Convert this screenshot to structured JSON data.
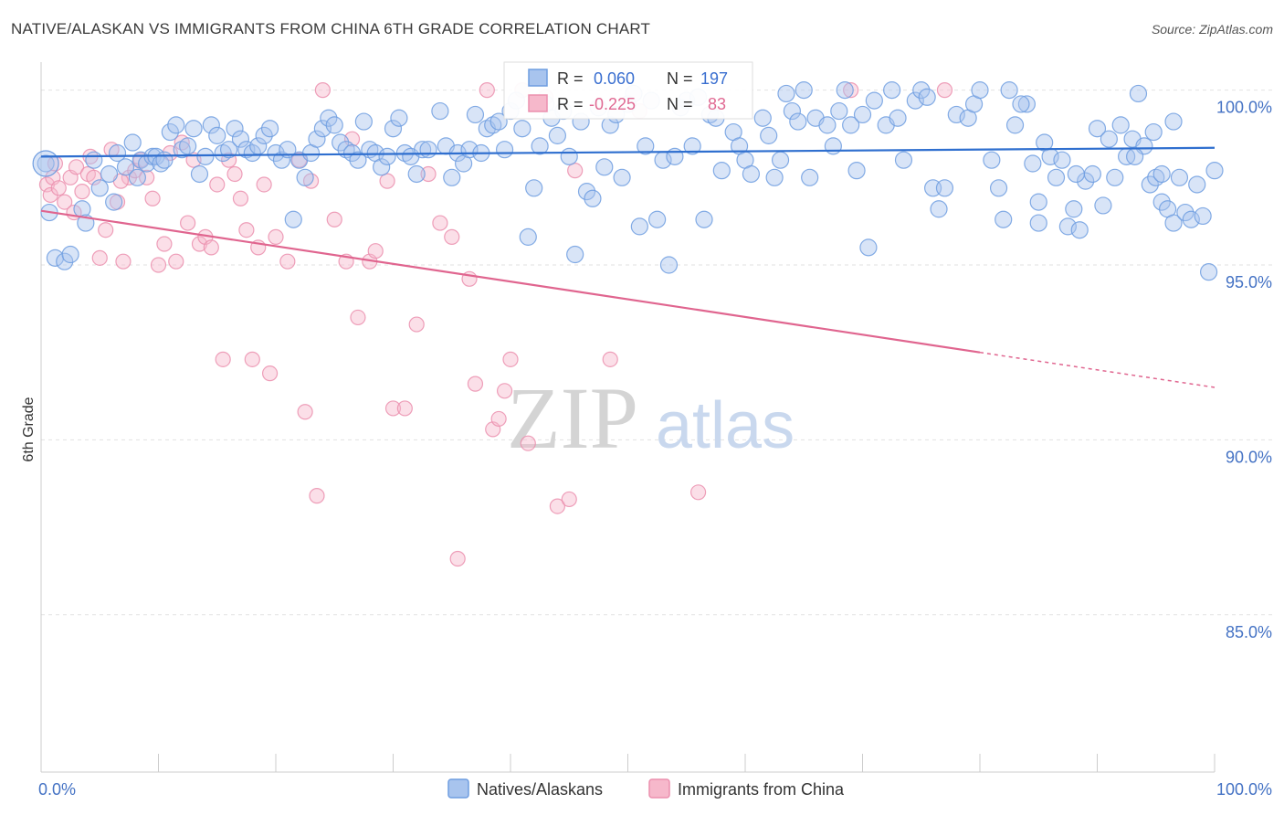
{
  "header": {
    "title": "NATIVE/ALASKAN VS IMMIGRANTS FROM CHINA 6TH GRADE CORRELATION CHART",
    "source": "Source: ZipAtlas.com"
  },
  "watermark": {
    "zip": "ZIP",
    "atlas": "atlas"
  },
  "stats": {
    "r_label": "R =",
    "n_label": "N =",
    "series1": {
      "r": "0.060",
      "n": "197"
    },
    "series2": {
      "r": "-0.225",
      "n": "83"
    }
  },
  "colors": {
    "blue_fill": "#a8c4ee",
    "blue_stroke": "#6f9de0",
    "blue_line": "#2f6fcf",
    "pink_fill": "#f6b8cb",
    "pink_stroke": "#eb8fae",
    "pink_line": "#e0658f"
  },
  "chart_data": {
    "type": "scatter",
    "title": "NATIVE/ALASKAN VS IMMIGRANTS FROM CHINA 6TH GRADE CORRELATION CHART",
    "xlabel": "",
    "ylabel": "6th Grade",
    "xlim": [
      0,
      100
    ],
    "ylim": [
      80.5,
      100.8
    ],
    "x_tick_labels": [
      "0.0%",
      "100.0%"
    ],
    "y_ticks": [
      {
        "value": 100,
        "label": "100.0%"
      },
      {
        "value": 95,
        "label": "95.0%"
      },
      {
        "value": 90,
        "label": "90.0%"
      },
      {
        "value": 85,
        "label": "85.0%"
      }
    ],
    "grid": true,
    "legend_position": "bottom",
    "series": [
      {
        "name": "Natives/Alaskans",
        "color": "#a8c4ee",
        "trend": {
          "x": [
            0,
            100
          ],
          "y": [
            98.1,
            98.35
          ]
        },
        "points": [
          [
            0.4,
            97.9
          ],
          [
            0.7,
            96.5
          ],
          [
            1.2,
            95.2
          ],
          [
            2.0,
            95.1
          ],
          [
            2.5,
            95.3
          ],
          [
            3.5,
            96.6
          ],
          [
            3.8,
            96.2
          ],
          [
            4.5,
            98.0
          ],
          [
            5.0,
            97.2
          ],
          [
            5.8,
            97.6
          ],
          [
            6.2,
            96.8
          ],
          [
            6.5,
            98.2
          ],
          [
            7.2,
            97.8
          ],
          [
            7.8,
            98.5
          ],
          [
            8.2,
            97.5
          ],
          [
            8.5,
            98.0
          ],
          [
            9.0,
            97.9
          ],
          [
            9.5,
            98.1
          ],
          [
            9.8,
            98.1
          ],
          [
            10.2,
            97.9
          ],
          [
            10.5,
            98.0
          ],
          [
            11.0,
            98.8
          ],
          [
            11.5,
            99.0
          ],
          [
            12.0,
            98.3
          ],
          [
            12.5,
            98.4
          ],
          [
            13.0,
            98.9
          ],
          [
            13.5,
            97.6
          ],
          [
            14.0,
            98.1
          ],
          [
            14.5,
            99.0
          ],
          [
            15.0,
            98.7
          ],
          [
            15.5,
            98.2
          ],
          [
            16.0,
            98.3
          ],
          [
            16.5,
            98.9
          ],
          [
            17.0,
            98.6
          ],
          [
            17.5,
            98.3
          ],
          [
            18.0,
            98.2
          ],
          [
            18.5,
            98.4
          ],
          [
            19.0,
            98.7
          ],
          [
            19.5,
            98.9
          ],
          [
            20.0,
            98.2
          ],
          [
            20.5,
            98.0
          ],
          [
            21.0,
            98.3
          ],
          [
            21.5,
            96.3
          ],
          [
            22.0,
            98.0
          ],
          [
            22.5,
            97.5
          ],
          [
            23.0,
            98.2
          ],
          [
            23.5,
            98.6
          ],
          [
            24.0,
            98.9
          ],
          [
            24.5,
            99.2
          ],
          [
            25.0,
            99.0
          ],
          [
            25.5,
            98.5
          ],
          [
            26.0,
            98.3
          ],
          [
            26.5,
            98.2
          ],
          [
            27.0,
            98.0
          ],
          [
            27.5,
            99.1
          ],
          [
            28.0,
            98.3
          ],
          [
            28.5,
            98.2
          ],
          [
            29.0,
            97.8
          ],
          [
            29.5,
            98.1
          ],
          [
            30.0,
            98.9
          ],
          [
            30.5,
            99.2
          ],
          [
            31.0,
            98.2
          ],
          [
            31.5,
            98.1
          ],
          [
            32.0,
            97.6
          ],
          [
            32.5,
            98.3
          ],
          [
            33.0,
            98.3
          ],
          [
            34.0,
            99.4
          ],
          [
            34.5,
            98.4
          ],
          [
            35.0,
            97.5
          ],
          [
            35.5,
            98.2
          ],
          [
            36.0,
            97.9
          ],
          [
            36.5,
            98.3
          ],
          [
            37.0,
            99.3
          ],
          [
            37.5,
            98.2
          ],
          [
            38.0,
            98.9
          ],
          [
            38.5,
            99.0
          ],
          [
            39.0,
            99.1
          ],
          [
            39.5,
            98.3
          ],
          [
            40.0,
            99.4
          ],
          [
            40.5,
            99.7
          ],
          [
            41.0,
            98.9
          ],
          [
            41.5,
            95.8
          ],
          [
            42.0,
            97.2
          ],
          [
            42.5,
            98.4
          ],
          [
            43.0,
            99.6
          ],
          [
            43.5,
            99.2
          ],
          [
            44.0,
            98.7
          ],
          [
            44.5,
            99.4
          ],
          [
            45.0,
            98.1
          ],
          [
            45.5,
            95.3
          ],
          [
            46.0,
            99.1
          ],
          [
            46.5,
            97.1
          ],
          [
            47.0,
            96.9
          ],
          [
            47.5,
            99.5
          ],
          [
            48.0,
            97.8
          ],
          [
            48.5,
            99.0
          ],
          [
            49.0,
            99.3
          ],
          [
            49.5,
            97.5
          ],
          [
            50.0,
            99.6
          ],
          [
            50.5,
            99.9
          ],
          [
            51.0,
            96.1
          ],
          [
            51.5,
            98.4
          ],
          [
            52.0,
            99.7
          ],
          [
            52.5,
            96.3
          ],
          [
            53.0,
            98.0
          ],
          [
            53.5,
            95.0
          ],
          [
            54.0,
            98.1
          ],
          [
            54.5,
            99.5
          ],
          [
            55.0,
            99.7
          ],
          [
            55.5,
            98.4
          ],
          [
            56.0,
            99.8
          ],
          [
            56.5,
            96.3
          ],
          [
            57.0,
            99.3
          ],
          [
            57.5,
            99.2
          ],
          [
            58.0,
            97.7
          ],
          [
            59.0,
            98.8
          ],
          [
            59.5,
            98.4
          ],
          [
            60.0,
            98.0
          ],
          [
            60.5,
            97.6
          ],
          [
            61.5,
            99.2
          ],
          [
            62.0,
            98.7
          ],
          [
            62.5,
            97.5
          ],
          [
            63.0,
            98.0
          ],
          [
            63.5,
            99.9
          ],
          [
            64.0,
            99.4
          ],
          [
            64.5,
            99.1
          ],
          [
            65.0,
            100.0
          ],
          [
            65.5,
            97.5
          ],
          [
            66.0,
            99.2
          ],
          [
            67.0,
            99.0
          ],
          [
            67.5,
            98.4
          ],
          [
            68.0,
            99.4
          ],
          [
            68.5,
            100.0
          ],
          [
            69.0,
            99.0
          ],
          [
            69.5,
            97.7
          ],
          [
            70.0,
            99.3
          ],
          [
            70.5,
            95.5
          ],
          [
            71.0,
            99.7
          ],
          [
            72.0,
            99.0
          ],
          [
            72.5,
            100.0
          ],
          [
            73.0,
            99.2
          ],
          [
            73.5,
            98.0
          ],
          [
            74.5,
            99.7
          ],
          [
            75.0,
            100.0
          ],
          [
            75.5,
            99.8
          ],
          [
            76.0,
            97.2
          ],
          [
            76.5,
            96.6
          ],
          [
            77.0,
            97.2
          ],
          [
            78.0,
            99.3
          ],
          [
            79.0,
            99.2
          ],
          [
            79.5,
            99.6
          ],
          [
            80.0,
            100.0
          ],
          [
            81.0,
            98.0
          ],
          [
            82.0,
            96.3
          ],
          [
            82.5,
            100.0
          ],
          [
            83.0,
            99.0
          ],
          [
            84.0,
            99.6
          ],
          [
            84.5,
            97.9
          ],
          [
            85.0,
            96.8
          ],
          [
            85.5,
            98.5
          ],
          [
            86.0,
            98.1
          ],
          [
            86.5,
            97.5
          ],
          [
            87.0,
            98.0
          ],
          [
            87.5,
            96.1
          ],
          [
            88.0,
            96.6
          ],
          [
            88.5,
            96.0
          ],
          [
            89.0,
            97.4
          ],
          [
            90.0,
            98.9
          ],
          [
            90.5,
            96.7
          ],
          [
            91.0,
            98.6
          ],
          [
            91.5,
            97.5
          ],
          [
            92.0,
            99.0
          ],
          [
            92.5,
            98.1
          ],
          [
            93.0,
            98.6
          ],
          [
            93.5,
            99.9
          ],
          [
            94.0,
            98.4
          ],
          [
            94.5,
            97.3
          ],
          [
            95.0,
            97.5
          ],
          [
            95.5,
            96.8
          ],
          [
            96.0,
            96.6
          ],
          [
            96.5,
            96.2
          ],
          [
            97.0,
            97.5
          ],
          [
            97.5,
            96.5
          ],
          [
            98.0,
            96.3
          ],
          [
            98.5,
            97.3
          ],
          [
            99.0,
            96.4
          ],
          [
            99.5,
            94.8
          ],
          [
            100.0,
            97.7
          ],
          [
            95.5,
            97.6
          ],
          [
            94.8,
            98.8
          ],
          [
            96.5,
            99.1
          ],
          [
            93.2,
            98.1
          ],
          [
            89.6,
            97.6
          ],
          [
            88.2,
            97.6
          ],
          [
            85.0,
            96.2
          ],
          [
            83.5,
            99.6
          ],
          [
            81.6,
            97.2
          ]
        ]
      },
      {
        "name": "Immigrants from China",
        "color": "#f6b8cb",
        "trend": {
          "x": [
            0,
            80
          ],
          "y": [
            96.55,
            92.5
          ]
        },
        "trend_extended": {
          "x": [
            80,
            100
          ],
          "y": [
            92.5,
            91.5
          ]
        },
        "points": [
          [
            0.5,
            97.3
          ],
          [
            0.8,
            97.0
          ],
          [
            1.0,
            97.5
          ],
          [
            1.5,
            97.2
          ],
          [
            2.0,
            96.8
          ],
          [
            2.5,
            97.5
          ],
          [
            3.0,
            97.8
          ],
          [
            3.5,
            97.1
          ],
          [
            4.0,
            97.6
          ],
          [
            4.5,
            97.5
          ],
          [
            5.0,
            95.2
          ],
          [
            5.5,
            96.0
          ],
          [
            6.0,
            98.3
          ],
          [
            6.5,
            96.8
          ],
          [
            7.0,
            95.1
          ],
          [
            7.5,
            97.5
          ],
          [
            8.0,
            97.7
          ],
          [
            8.5,
            98.0
          ],
          [
            9.0,
            97.5
          ],
          [
            9.5,
            96.9
          ],
          [
            10.0,
            95.0
          ],
          [
            10.5,
            95.6
          ],
          [
            11.0,
            98.2
          ],
          [
            11.5,
            95.1
          ],
          [
            12.0,
            98.5
          ],
          [
            12.5,
            96.2
          ],
          [
            13.0,
            98.0
          ],
          [
            13.5,
            95.6
          ],
          [
            14.0,
            95.8
          ],
          [
            14.5,
            95.5
          ],
          [
            15.0,
            97.3
          ],
          [
            15.5,
            92.3
          ],
          [
            16.0,
            98.0
          ],
          [
            16.5,
            97.6
          ],
          [
            17.0,
            96.9
          ],
          [
            17.5,
            96.0
          ],
          [
            18.0,
            92.3
          ],
          [
            18.5,
            95.5
          ],
          [
            19.0,
            97.3
          ],
          [
            19.5,
            91.9
          ],
          [
            20.0,
            95.8
          ],
          [
            21.0,
            95.1
          ],
          [
            22.0,
            98.0
          ],
          [
            22.5,
            90.8
          ],
          [
            23.0,
            97.4
          ],
          [
            23.5,
            88.4
          ],
          [
            24.0,
            100.0
          ],
          [
            25.0,
            96.3
          ],
          [
            26.0,
            95.1
          ],
          [
            26.5,
            98.6
          ],
          [
            27.0,
            93.5
          ],
          [
            28.0,
            95.1
          ],
          [
            28.5,
            95.4
          ],
          [
            29.5,
            97.4
          ],
          [
            30.0,
            90.9
          ],
          [
            31.0,
            90.9
          ],
          [
            32.0,
            93.3
          ],
          [
            33.0,
            97.6
          ],
          [
            34.0,
            96.2
          ],
          [
            35.0,
            95.8
          ],
          [
            35.5,
            86.6
          ],
          [
            36.5,
            94.6
          ],
          [
            37.0,
            91.6
          ],
          [
            38.0,
            100.0
          ],
          [
            38.5,
            90.3
          ],
          [
            39.0,
            90.6
          ],
          [
            39.5,
            91.4
          ],
          [
            40.0,
            92.3
          ],
          [
            41.0,
            100.0
          ],
          [
            41.5,
            89.9
          ],
          [
            43.0,
            99.8
          ],
          [
            44.0,
            88.1
          ],
          [
            45.0,
            88.3
          ],
          [
            45.5,
            97.7
          ],
          [
            48.5,
            92.3
          ],
          [
            51.0,
            99.4
          ],
          [
            56.0,
            88.5
          ],
          [
            69.0,
            100.0
          ],
          [
            77.0,
            100.0
          ],
          [
            1.2,
            97.9
          ],
          [
            2.8,
            96.5
          ],
          [
            4.2,
            98.1
          ],
          [
            6.8,
            97.4
          ]
        ]
      }
    ]
  },
  "legend": {
    "items": [
      {
        "label": "Natives/Alaskans"
      },
      {
        "label": "Immigrants from China"
      }
    ]
  }
}
